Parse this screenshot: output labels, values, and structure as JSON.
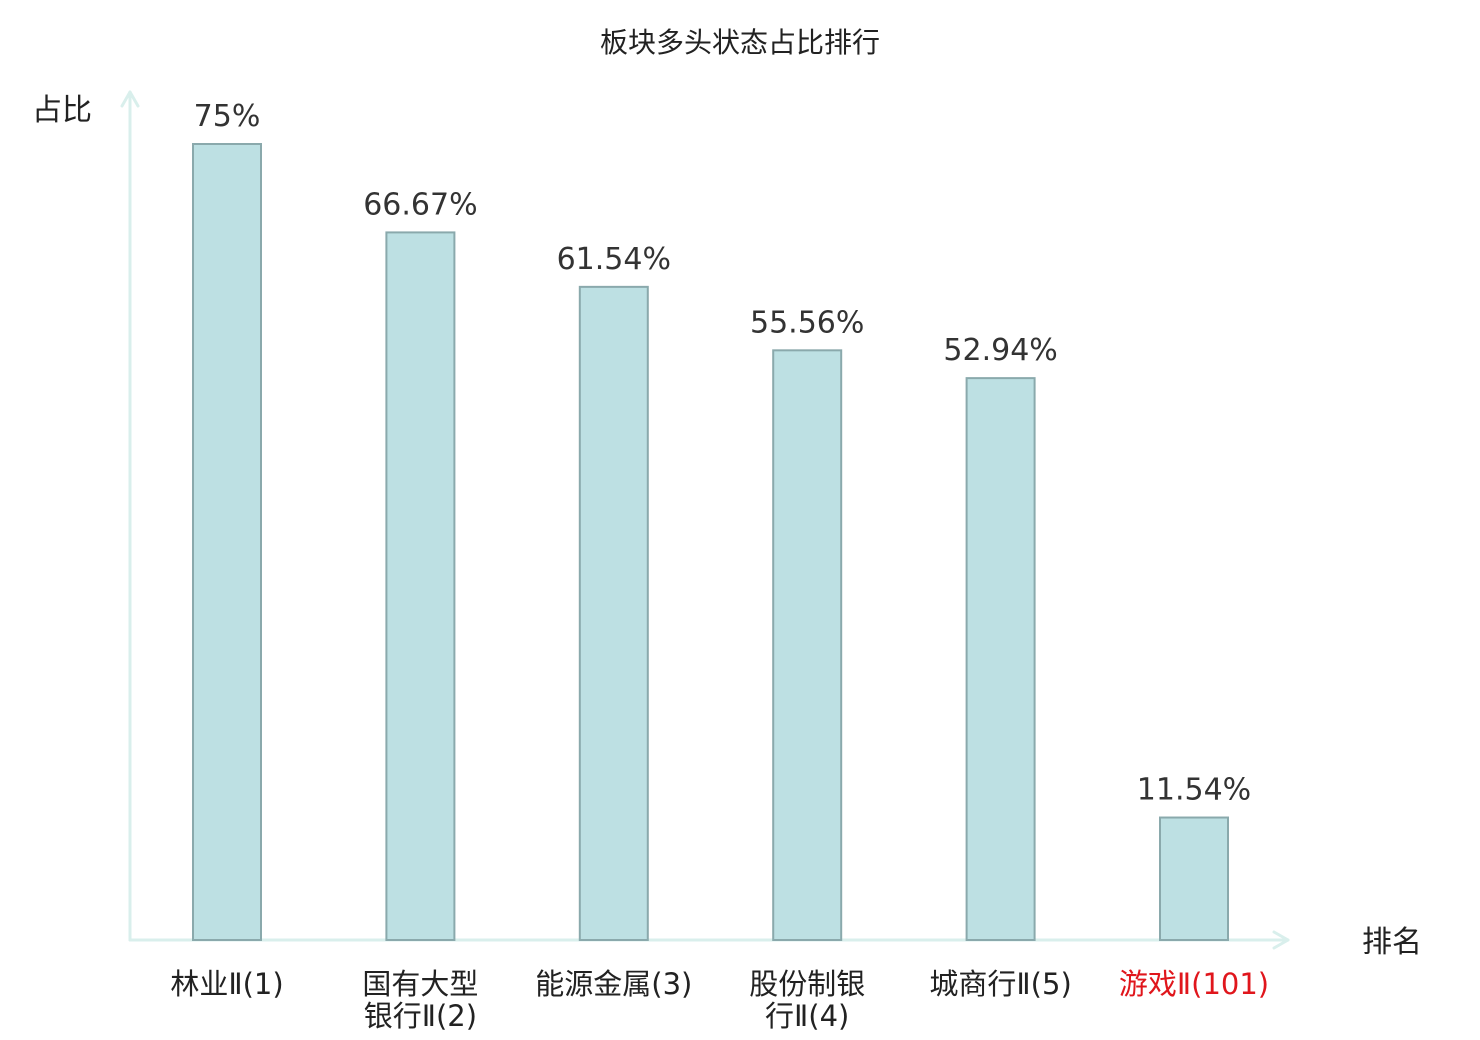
{
  "chart_data": {
    "type": "bar",
    "title": "板块多头状态占比排行",
    "ylabel": "占比",
    "xlabel": "排名",
    "categories": [
      [
        "林业Ⅱ(1)"
      ],
      [
        "国有大型",
        "银行Ⅱ(2)"
      ],
      [
        "能源金属(3)"
      ],
      [
        "股份制银",
        "行Ⅱ(4)"
      ],
      [
        "城商行Ⅱ(5)"
      ],
      [
        "游戏Ⅱ(101)"
      ]
    ],
    "values": [
      75,
      66.67,
      61.54,
      55.56,
      52.94,
      11.54
    ],
    "value_labels": [
      "75%",
      "66.67%",
      "61.54%",
      "55.56%",
      "52.94%",
      "11.54%"
    ],
    "highlight_index": 5,
    "ylim": [
      0,
      75
    ],
    "grid": false,
    "colors": {
      "bar_fill": "#bde0e3",
      "bar_stroke": "#8aa9ac",
      "axis": "#d9efec",
      "text": "#222222",
      "value_text": "#333333",
      "highlight_text": "#e0161c"
    }
  }
}
